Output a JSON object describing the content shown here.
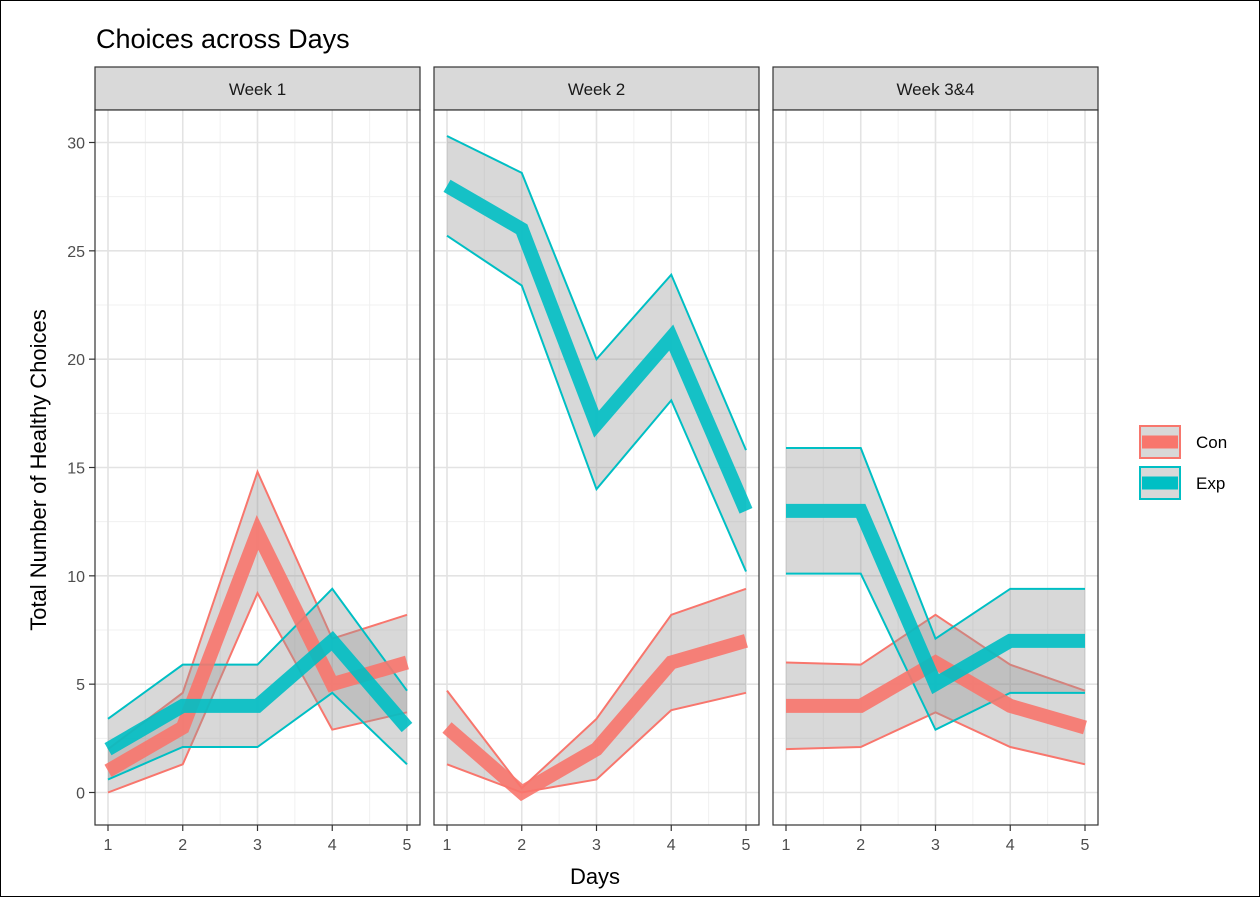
{
  "chart_data": {
    "type": "line",
    "title": "Choices across Days",
    "xlabel": "Days",
    "ylabel": "Total Number of Healthy Choices",
    "xlim": [
      1,
      5
    ],
    "ylim": [
      -1.5,
      31.5
    ],
    "x_ticks": [
      "1",
      "2",
      "3",
      "4",
      "5"
    ],
    "y_ticks": [
      "0",
      "5",
      "10",
      "15",
      "20",
      "25",
      "30"
    ],
    "grid": true,
    "legend": "right",
    "colors": {
      "Con": "#F8766D",
      "Exp": "#00BFC4",
      "ribbon": "#999999",
      "panel_border": "#333333",
      "strip_fill": "#D9D9D9"
    },
    "panels": [
      {
        "label": "Week 1",
        "series": [
          {
            "name": "Con",
            "x": [
              1,
              2,
              3,
              4,
              5
            ],
            "y": [
              1,
              3,
              12,
              5,
              6
            ],
            "lower": [
              0,
              1.3,
              9.2,
              2.9,
              3.7
            ],
            "upper": [
              2,
              4.6,
              14.8,
              7.1,
              8.2
            ]
          },
          {
            "name": "Exp",
            "x": [
              1,
              2,
              3,
              4,
              5
            ],
            "y": [
              2,
              4,
              4,
              7,
              3
            ],
            "lower": [
              0.6,
              2.1,
              2.1,
              4.6,
              1.3
            ],
            "upper": [
              3.4,
              5.9,
              5.9,
              9.4,
              4.7
            ]
          }
        ]
      },
      {
        "label": "Week 2",
        "series": [
          {
            "name": "Con",
            "x": [
              1,
              2,
              3,
              4,
              5
            ],
            "y": [
              3,
              0,
              2,
              6,
              7
            ],
            "lower": [
              1.3,
              0,
              0.6,
              3.8,
              4.6
            ],
            "upper": [
              4.7,
              0.2,
              3.4,
              8.2,
              9.4
            ]
          },
          {
            "name": "Exp",
            "x": [
              1,
              2,
              3,
              4,
              5
            ],
            "y": [
              28,
              26,
              17,
              21,
              13
            ],
            "lower": [
              25.7,
              23.4,
              14,
              18.1,
              10.2
            ],
            "upper": [
              30.3,
              28.6,
              20,
              23.9,
              15.8
            ]
          }
        ]
      },
      {
        "label": "Week 3&4",
        "series": [
          {
            "name": "Con",
            "x": [
              1,
              2,
              3,
              4,
              5
            ],
            "y": [
              4,
              4,
              6,
              4,
              3
            ],
            "lower": [
              2,
              2.1,
              3.7,
              2.1,
              1.3
            ],
            "upper": [
              6,
              5.9,
              8.2,
              5.9,
              4.7
            ]
          },
          {
            "name": "Exp",
            "x": [
              1,
              2,
              3,
              4,
              5
            ],
            "y": [
              13,
              13,
              5,
              7,
              7
            ],
            "lower": [
              10.1,
              10.1,
              2.9,
              4.6,
              4.6
            ],
            "upper": [
              15.9,
              15.9,
              7.1,
              9.4,
              9.4
            ]
          }
        ]
      }
    ],
    "legend_entries": [
      "Con",
      "Exp"
    ]
  }
}
